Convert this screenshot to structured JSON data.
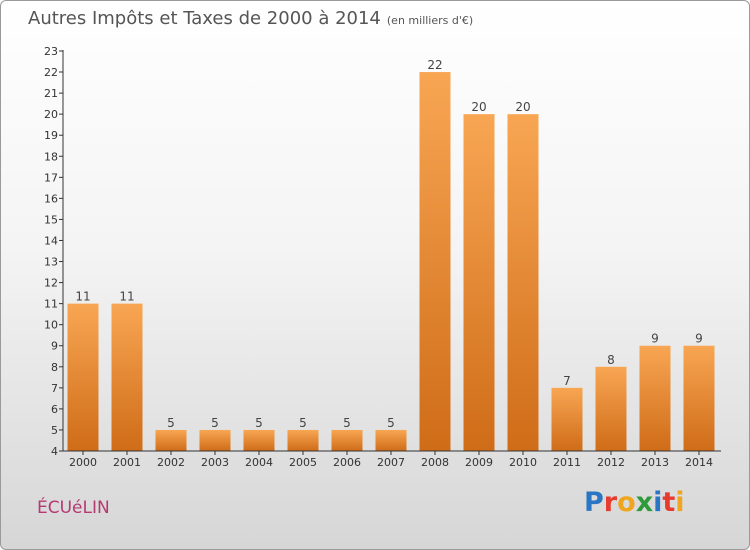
{
  "header": {
    "title": "Autres Impôts et Taxes de 2000 à 2014",
    "unit": "(en milliers d'€)"
  },
  "footer": {
    "city": "ÉCUéLIN",
    "logo": [
      "P",
      "r",
      "o",
      "x",
      "i",
      "t",
      "i"
    ],
    "logo_colors": [
      "#2b76c4",
      "#e63b2e",
      "#f0a51e",
      "#2e9b3a",
      "#2b76c4",
      "#e63b2e",
      "#f0a51e"
    ]
  },
  "colors": {
    "bar_top": "#f8a653",
    "bar_bottom": "#cf6c18",
    "axis": "#333333",
    "title": "#555555",
    "city": "#b53a72"
  },
  "chart_data": {
    "type": "bar",
    "title": "Autres Impôts et Taxes de 2000 à 2014",
    "subtitle": "(en milliers d'€)",
    "xlabel": "",
    "ylabel": "",
    "categories": [
      "2000",
      "2001",
      "2002",
      "2003",
      "2004",
      "2005",
      "2006",
      "2007",
      "2008",
      "2009",
      "2010",
      "2011",
      "2012",
      "2013",
      "2014"
    ],
    "values": [
      11,
      11,
      5,
      5,
      5,
      5,
      5,
      5,
      22,
      20,
      20,
      7,
      8,
      9,
      9
    ],
    "ylim": [
      4,
      23
    ],
    "yticks": [
      4,
      5,
      6,
      7,
      8,
      9,
      10,
      11,
      12,
      13,
      14,
      15,
      16,
      17,
      18,
      19,
      20,
      21,
      22,
      23
    ],
    "grid": false,
    "legend": "none"
  }
}
